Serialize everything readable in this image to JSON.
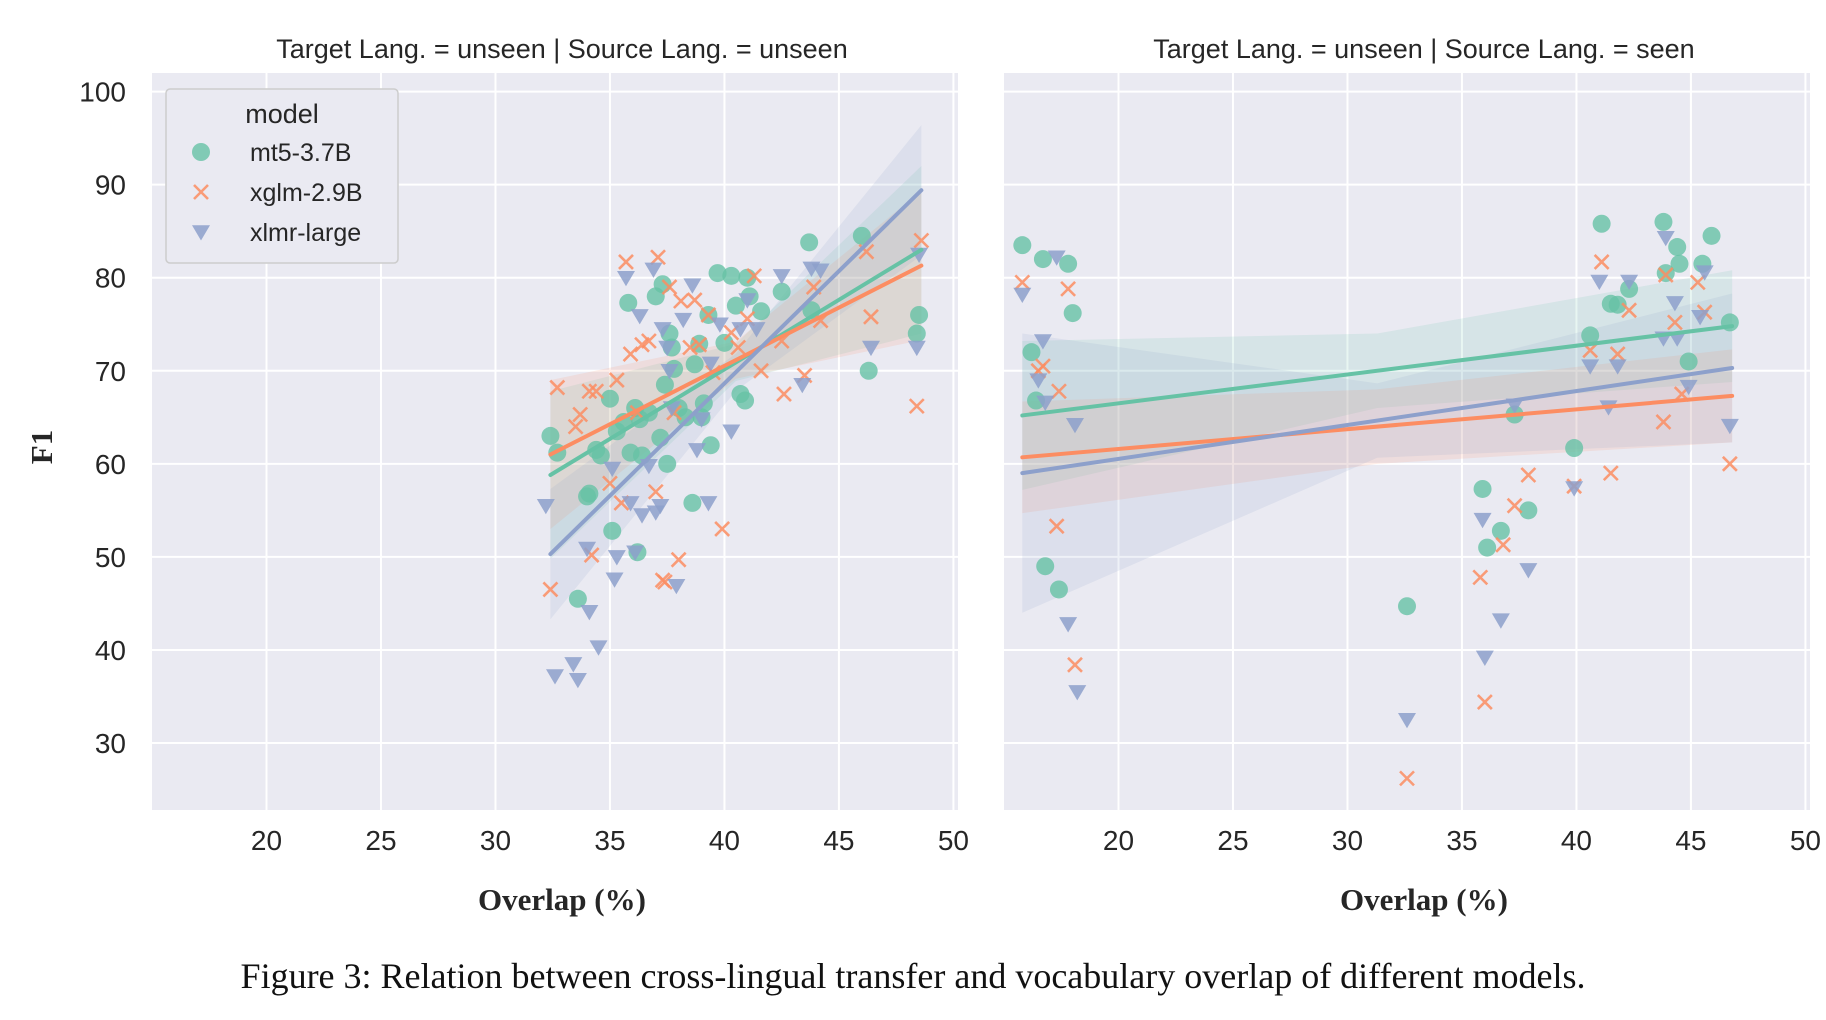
{
  "caption": "Figure 3: Relation between cross-lingual transfer and vocabulary overlap of different models.",
  "legend": {
    "title": "model"
  },
  "colors": {
    "mt5-3.7B": "#66c2a5",
    "xglm-2.9B": "#fc8d62",
    "xlmr-large": "#8da0cb"
  },
  "chart_data": [
    {
      "type": "scatter",
      "title": "Target Lang. = unseen | Source Lang. = unseen",
      "xlabel": "Overlap (%)",
      "ylabel": "F1",
      "xlim": [
        15,
        50.2
      ],
      "ylim": [
        22.8,
        102
      ],
      "xticks": [
        "20",
        "25",
        "30",
        "35",
        "40",
        "45",
        "50"
      ],
      "yticks": [
        "30",
        "40",
        "50",
        "60",
        "70",
        "80",
        "90",
        "100"
      ],
      "legend": "top-left",
      "series": [
        {
          "name": "mt5-3.7B",
          "marker": "circle",
          "x": [
            32.4,
            32.7,
            33.6,
            34.0,
            34.1,
            34.4,
            34.6,
            35.0,
            35.1,
            35.3,
            35.6,
            35.8,
            35.9,
            36.1,
            36.2,
            36.3,
            36.4,
            36.7,
            37.0,
            37.2,
            37.3,
            37.4,
            37.5,
            37.6,
            37.7,
            37.8,
            38.0,
            38.3,
            38.6,
            38.7,
            38.9,
            39.0,
            39.1,
            39.3,
            39.4,
            39.7,
            40.0,
            40.3,
            40.5,
            40.7,
            40.9,
            41.0,
            41.1,
            41.6,
            42.5,
            43.7,
            43.8,
            46.0,
            46.3,
            48.4,
            48.5
          ],
          "y": [
            63,
            61.2,
            45.5,
            56.5,
            56.8,
            61.5,
            60.9,
            67,
            52.8,
            63.5,
            64.5,
            77.3,
            61.2,
            66,
            50.5,
            64.8,
            60.9,
            65.5,
            78,
            62.8,
            79.3,
            68.5,
            60,
            74,
            72.5,
            70.2,
            66,
            65,
            55.8,
            70.7,
            72.9,
            65,
            66.5,
            76,
            62,
            80.5,
            73,
            80.2,
            77,
            67.5,
            66.8,
            80,
            78,
            76.4,
            78.5,
            83.8,
            76.5,
            84.5,
            70,
            74,
            76
          ]
        },
        {
          "name": "xglm-2.9B",
          "marker": "x",
          "x": [
            32.4,
            32.7,
            33.5,
            33.7,
            34.1,
            34.2,
            34.4,
            35.0,
            35.3,
            35.5,
            35.7,
            35.9,
            36.2,
            36.4,
            36.7,
            37.0,
            37.1,
            37.3,
            37.4,
            37.6,
            37.8,
            38.0,
            38.1,
            38.5,
            38.7,
            38.9,
            39.3,
            39.5,
            39.9,
            40.3,
            40.6,
            41.0,
            41.3,
            41.6,
            42.5,
            42.6,
            43.5,
            43.9,
            44.2,
            46.2,
            46.4,
            48.4,
            48.6
          ],
          "y": [
            46.5,
            68.2,
            64,
            65.3,
            67.8,
            50.2,
            67.8,
            57.9,
            69,
            55.8,
            81.7,
            71.8,
            65.5,
            72.8,
            73.2,
            57,
            82.2,
            47.5,
            47.3,
            79,
            65.5,
            49.7,
            77.5,
            72.5,
            77.6,
            72.8,
            76,
            69.8,
            53,
            74.1,
            72.5,
            75.6,
            80.2,
            70,
            73.2,
            67.5,
            69.5,
            79,
            75.4,
            82.8,
            75.8,
            66.2,
            84
          ]
        },
        {
          "name": "xlmr-large",
          "marker": "triangle",
          "x": [
            32.2,
            32.6,
            33.4,
            33.6,
            34.0,
            34.1,
            34.5,
            35.1,
            35.2,
            35.3,
            35.7,
            35.9,
            36.1,
            36.3,
            36.4,
            36.7,
            36.9,
            37.0,
            37.2,
            37.3,
            37.5,
            37.6,
            37.7,
            37.9,
            38.2,
            38.6,
            38.8,
            39.0,
            39.3,
            39.4,
            39.8,
            40.3,
            40.7,
            41.0,
            41.4,
            42.5,
            43.4,
            43.8,
            44.2,
            46.4,
            48.4,
            48.5
          ],
          "y": [
            55.5,
            37.2,
            38.5,
            36.8,
            50.9,
            44.1,
            40.3,
            59.5,
            47.6,
            50,
            80,
            55.8,
            50.5,
            75.9,
            54.5,
            59.8,
            80.9,
            54.8,
            55.5,
            74.5,
            72.5,
            70,
            66,
            46.9,
            75.5,
            79.2,
            61.5,
            64.8,
            55.8,
            70.8,
            75,
            63.5,
            74.5,
            77.6,
            74.5,
            80.2,
            68.5,
            81,
            80.8,
            72.5,
            72.5,
            82.5
          ]
        }
      ],
      "fits": [
        {
          "name": "mt5-3.7B",
          "x": [
            32.4,
            48.6
          ],
          "y": [
            58.8,
            83.0
          ]
        },
        {
          "name": "xglm-2.9B",
          "x": [
            32.4,
            48.6
          ],
          "y": [
            61.0,
            81.3
          ]
        },
        {
          "name": "xlmr-large",
          "x": [
            32.4,
            48.6
          ],
          "y": [
            50.3,
            89.4
          ]
        }
      ]
    },
    {
      "type": "scatter",
      "title": "Target Lang. = unseen | Source Lang. = seen",
      "xlabel": "Overlap (%)",
      "ylabel": "",
      "xlim": [
        15,
        50.2
      ],
      "ylim": [
        22.8,
        102
      ],
      "xticks": [
        "20",
        "25",
        "30",
        "35",
        "40",
        "45",
        "50"
      ],
      "yticks": [],
      "legend": "none",
      "series": [
        {
          "name": "mt5-3.7B",
          "marker": "circle",
          "x": [
            15.8,
            16.2,
            16.4,
            16.7,
            16.8,
            17.4,
            17.8,
            18.0,
            32.6,
            35.9,
            36.1,
            36.7,
            37.3,
            37.9,
            39.9,
            40.6,
            41.1,
            41.5,
            41.8,
            42.3,
            43.8,
            43.9,
            44.4,
            44.5,
            44.9,
            45.5,
            45.9,
            46.7
          ],
          "y": [
            83.5,
            72,
            66.8,
            82,
            49,
            46.5,
            81.5,
            76.2,
            44.7,
            57.3,
            51,
            52.8,
            65.3,
            55,
            61.7,
            73.8,
            85.8,
            77.2,
            77.1,
            78.8,
            86,
            80.5,
            83.3,
            81.5,
            71,
            81.5,
            84.5,
            75.2
          ]
        },
        {
          "name": "xglm-2.9B",
          "marker": "x",
          "x": [
            15.8,
            16.5,
            16.7,
            17.3,
            17.4,
            17.8,
            18.1,
            32.6,
            35.8,
            36.0,
            36.8,
            37.3,
            37.9,
            39.9,
            40.6,
            41.1,
            41.5,
            41.8,
            42.3,
            43.8,
            43.9,
            44.3,
            44.6,
            45.3,
            45.6,
            46.7
          ],
          "y": [
            79.5,
            70,
            70.5,
            53.3,
            67.8,
            78.8,
            38.4,
            26.2,
            47.8,
            34.4,
            51.3,
            55.5,
            58.8,
            57.6,
            72.2,
            81.7,
            59,
            71.8,
            76.5,
            64.5,
            80.3,
            75.2,
            67.5,
            79.5,
            76.3,
            60
          ]
        },
        {
          "name": "xlmr-large",
          "marker": "triangle",
          "x": [
            15.8,
            16.5,
            16.7,
            16.8,
            17.3,
            17.8,
            18.1,
            18.2,
            32.6,
            35.9,
            36.0,
            36.7,
            37.3,
            37.9,
            39.9,
            40.6,
            41.0,
            41.4,
            41.8,
            42.3,
            43.8,
            43.9,
            44.3,
            44.4,
            44.9,
            45.4,
            45.6,
            46.7
          ],
          "y": [
            78.2,
            69,
            73.2,
            66.6,
            82.2,
            42.8,
            64.2,
            35.5,
            32.5,
            54,
            39.2,
            43.2,
            66.3,
            48.6,
            57.4,
            70.5,
            79.6,
            66.1,
            70.5,
            79.6,
            73.5,
            84.3,
            77.3,
            73.5,
            68.3,
            75.8,
            80.6,
            64.1
          ]
        }
      ],
      "fits": [
        {
          "name": "mt5-3.7B",
          "x": [
            15.8,
            46.8
          ],
          "y": [
            65.2,
            74.8
          ]
        },
        {
          "name": "xglm-2.9B",
          "x": [
            15.8,
            46.8
          ],
          "y": [
            60.7,
            67.3
          ]
        },
        {
          "name": "xlmr-large",
          "x": [
            15.8,
            46.8
          ],
          "y": [
            59.0,
            70.3
          ]
        }
      ]
    }
  ]
}
